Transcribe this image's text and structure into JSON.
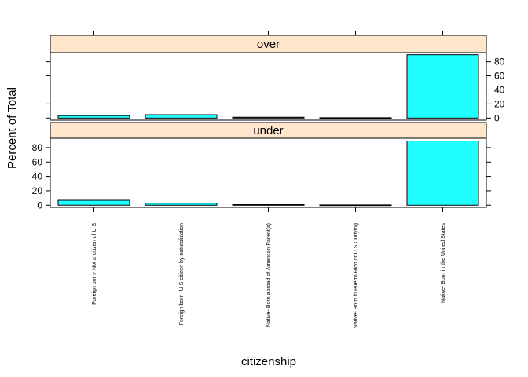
{
  "chart_data": {
    "type": "bar",
    "xlabel": "citizenship",
    "ylabel": "Percent of Total",
    "categories": [
      "Foreign born- Not a citizen of U S",
      "Foreign born- U S citizen by naturalization",
      "Native- Born abroad of American Parent(s)",
      "Native- Born in Puerto Rico or U S Outlying",
      "Native- Born in the United States"
    ],
    "yticks": [
      0,
      20,
      40,
      60,
      80
    ],
    "ylim": [
      -3,
      93
    ],
    "bar_color": "#1fffff",
    "strip_color": "#ffe5cc",
    "panels": [
      {
        "name": "over",
        "values": [
          3.5,
          4.8,
          1.2,
          0.5,
          90.0
        ]
      },
      {
        "name": "under",
        "values": [
          6.8,
          2.8,
          0.8,
          0.4,
          89.2
        ]
      }
    ]
  }
}
